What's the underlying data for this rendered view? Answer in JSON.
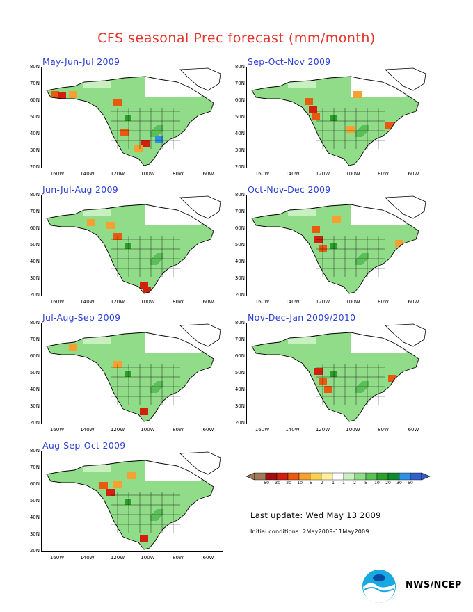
{
  "title": "CFS seasonal Prec forecast (mm/month)",
  "panels": [
    {
      "label": "May-Jun-Jul 2009"
    },
    {
      "label": "Sep-Oct-Nov 2009"
    },
    {
      "label": "Jun-Jul-Aug 2009"
    },
    {
      "label": "Oct-Nov-Dec 2009"
    },
    {
      "label": "Jul-Aug-Sep 2009"
    },
    {
      "label": "Nov-Dec-Jan 2009/2010"
    },
    {
      "label": "Aug-Sep-Oct 2009"
    }
  ],
  "lat_labels": [
    "80N",
    "70N",
    "60N",
    "50N",
    "40N",
    "30N",
    "20N"
  ],
  "lon_labels": [
    "160W",
    "140W",
    "120W",
    "100W",
    "80W",
    "60W"
  ],
  "colorbar": {
    "ticks": [
      "-50",
      "-30",
      "-20",
      "-10",
      "-5",
      "-2",
      "-1",
      "1",
      "2",
      "5",
      "10",
      "20",
      "30",
      "50"
    ],
    "colors": [
      "#a0785a",
      "#a01010",
      "#d02010",
      "#e85a10",
      "#f5a030",
      "#fad050",
      "#fff0a0",
      "#ffffff",
      "#c8f0c0",
      "#90dc88",
      "#5cc05a",
      "#2ca02c",
      "#108a30",
      "#3090e0",
      "#3060c8"
    ]
  },
  "last_update": "Last update: Wed May 13 2009",
  "initial_conditions": "Initial conditions: 2May2009-11May2009",
  "agency": "NWS/NCEP"
}
